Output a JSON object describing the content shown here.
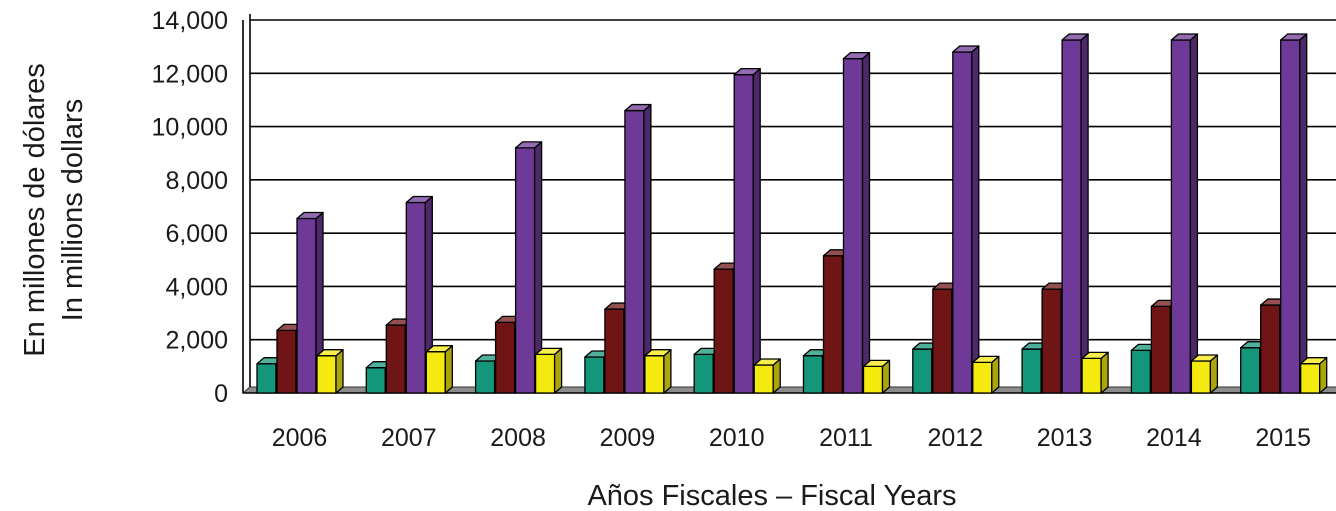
{
  "chart_data": {
    "type": "bar",
    "title": "",
    "xlabel": "Años Fiscales – Fiscal Years",
    "ylabel_lines": [
      "En millones de dólares",
      "In millions dollars"
    ],
    "categories": [
      "2006",
      "2007",
      "2008",
      "2009",
      "2010",
      "2011",
      "2012",
      "2013",
      "2014",
      "2015"
    ],
    "ylim": [
      0,
      14000
    ],
    "yticks": [
      "0",
      "2,000",
      "4,000",
      "6,000",
      "8,000",
      "10,000",
      "12,000",
      "14,000"
    ],
    "ytick_values": [
      0,
      2000,
      4000,
      6000,
      8000,
      10000,
      12000,
      14000
    ],
    "grid": true,
    "legend": "none",
    "series": [
      {
        "color": "#14967a",
        "values": [
          1100,
          950,
          1200,
          1350,
          1450,
          1400,
          1650,
          1650,
          1600,
          1700
        ]
      },
      {
        "color": "#701515",
        "values": [
          2350,
          2550,
          2650,
          3150,
          4650,
          5150,
          3900,
          3900,
          3250,
          3300
        ]
      },
      {
        "color": "#6f3a97",
        "values": [
          6550,
          7150,
          9200,
          10600,
          11950,
          12550,
          12800,
          13250,
          13250,
          13250
        ]
      },
      {
        "color": "#f5ea10",
        "values": [
          1400,
          1550,
          1450,
          1400,
          1050,
          1000,
          1150,
          1300,
          1200,
          1100
        ]
      }
    ]
  }
}
